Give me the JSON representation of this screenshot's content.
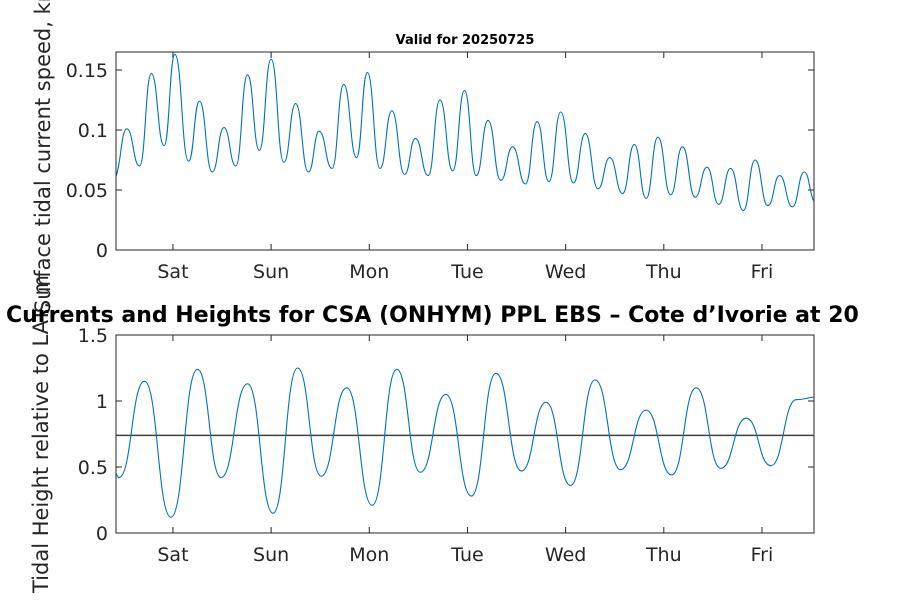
{
  "figure": {
    "main_title": "Currents and Heights for CSA (ONHYM) PPL EBS  – Cote d’Ivorie at 20",
    "subplot_title": "Valid for 20250725"
  },
  "chart_data": [
    {
      "type": "line",
      "ylabel": "Surface tidal current speed, kn",
      "ylim": [
        0,
        0.165
      ],
      "yticks": [
        0,
        0.05,
        0.1,
        0.15
      ],
      "ytick_labels": [
        "0",
        "0.05",
        "0.1",
        "0.15"
      ],
      "xlim": [
        0.42,
        7.53
      ],
      "xtick_labels": [
        "Sat",
        "Sun",
        "Mon",
        "Tue",
        "Wed",
        "Thu",
        "Fri"
      ],
      "x_unit": "days",
      "series": [
        {
          "color": "#0072bd",
          "x": [
            0.42,
            0.53,
            0.66,
            0.78,
            0.91,
            1.02,
            1.16,
            1.27,
            1.4,
            1.52,
            1.64,
            1.76,
            1.88,
            2.0,
            2.13,
            2.25,
            2.38,
            2.49,
            2.62,
            2.74,
            2.87,
            2.98,
            3.11,
            3.23,
            3.36,
            3.47,
            3.6,
            3.72,
            3.85,
            3.97,
            4.09,
            4.21,
            4.34,
            4.46,
            4.59,
            4.71,
            4.83,
            4.95,
            5.08,
            5.2,
            5.33,
            5.45,
            5.58,
            5.7,
            5.82,
            5.94,
            6.07,
            6.19,
            6.32,
            6.44,
            6.56,
            6.68,
            6.81,
            6.93,
            7.06,
            7.18,
            7.31,
            7.43,
            7.53
          ],
          "values": [
            0.061,
            0.101,
            0.07,
            0.147,
            0.087,
            0.163,
            0.074,
            0.124,
            0.065,
            0.102,
            0.07,
            0.146,
            0.083,
            0.159,
            0.073,
            0.122,
            0.065,
            0.099,
            0.068,
            0.138,
            0.077,
            0.148,
            0.068,
            0.116,
            0.063,
            0.093,
            0.062,
            0.125,
            0.066,
            0.133,
            0.062,
            0.108,
            0.058,
            0.086,
            0.055,
            0.107,
            0.057,
            0.115,
            0.056,
            0.097,
            0.051,
            0.077,
            0.047,
            0.088,
            0.043,
            0.094,
            0.046,
            0.086,
            0.044,
            0.069,
            0.038,
            0.068,
            0.033,
            0.075,
            0.037,
            0.062,
            0.036,
            0.065,
            0.04
          ]
        }
      ]
    },
    {
      "type": "line",
      "ylabel": "Tidal Height relative to LAT, m",
      "ylim": [
        0,
        1.5
      ],
      "yticks": [
        0,
        0.5,
        1,
        1.5
      ],
      "ytick_labels": [
        "0",
        "0.5",
        "1",
        "1.5"
      ],
      "xlim": [
        0.42,
        7.53
      ],
      "xtick_labels": [
        "Sat",
        "Sun",
        "Mon",
        "Tue",
        "Wed",
        "Thu",
        "Fri"
      ],
      "x_unit": "days",
      "reference_line": 0.74,
      "series": [
        {
          "color": "#0072bd",
          "x": [
            0.42,
            0.45,
            0.71,
            0.98,
            1.25,
            1.49,
            1.76,
            2.02,
            2.27,
            2.51,
            2.77,
            3.03,
            3.28,
            3.52,
            3.78,
            4.04,
            4.29,
            4.55,
            4.8,
            5.05,
            5.3,
            5.56,
            5.82,
            6.08,
            6.33,
            6.58,
            6.84,
            7.09,
            7.35,
            7.53
          ],
          "values": [
            0.45,
            0.42,
            1.15,
            0.12,
            1.24,
            0.42,
            1.13,
            0.15,
            1.25,
            0.43,
            1.1,
            0.21,
            1.24,
            0.46,
            1.05,
            0.28,
            1.21,
            0.47,
            0.99,
            0.36,
            1.16,
            0.48,
            0.93,
            0.44,
            1.1,
            0.49,
            0.87,
            0.51,
            1.01,
            1.03
          ]
        }
      ]
    }
  ]
}
